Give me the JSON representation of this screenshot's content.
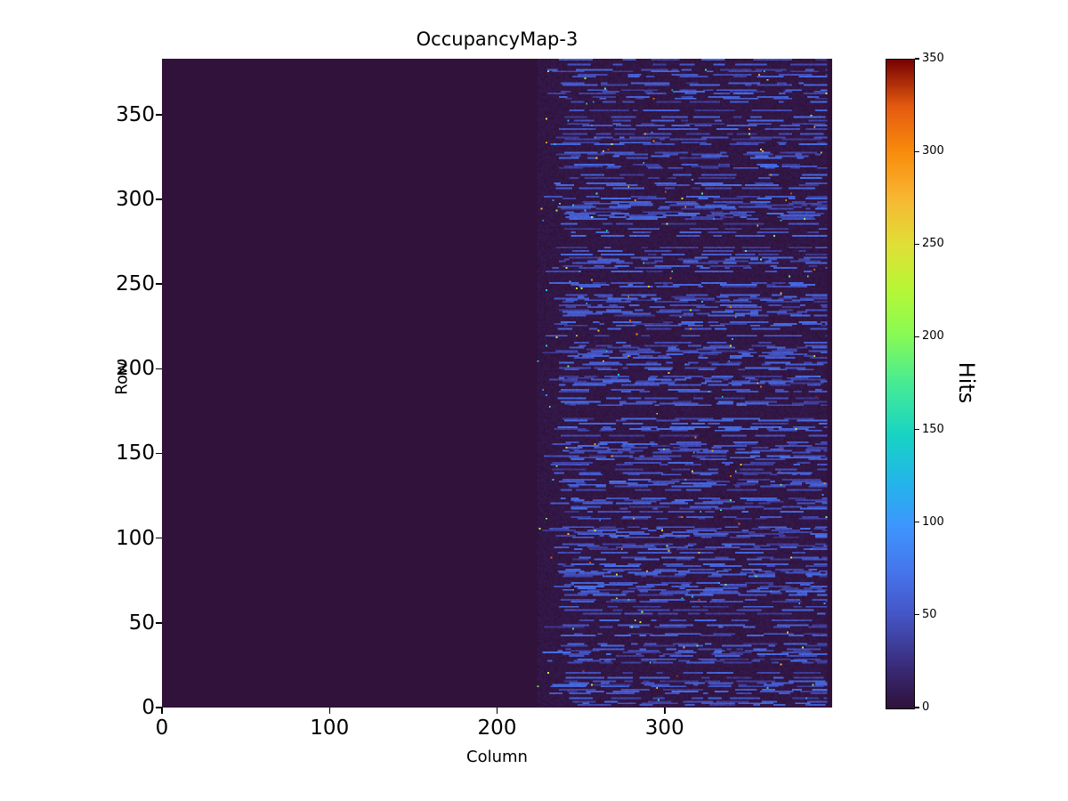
{
  "chart_data": {
    "type": "heatmap",
    "title": "OccupancyMap-3",
    "xlabel": "Column",
    "ylabel": "Row",
    "value_label": "Hits",
    "xlim": [
      0,
      400
    ],
    "ylim": [
      0,
      383
    ],
    "x_ticks": [
      0,
      100,
      200,
      300
    ],
    "y_ticks": [
      0,
      50,
      100,
      150,
      200,
      250,
      300,
      350
    ],
    "colorbar_ticks": [
      0,
      50,
      100,
      150,
      200,
      250,
      300,
      350
    ],
    "value_range": [
      0,
      350
    ],
    "grid": false,
    "legend": "none",
    "colormap": "turbo",
    "colormap_stops": [
      [
        0.0,
        "#30123b"
      ],
      [
        0.07,
        "#3b2f80"
      ],
      [
        0.14,
        "#4454c4"
      ],
      [
        0.21,
        "#4675ed"
      ],
      [
        0.28,
        "#3e96fe"
      ],
      [
        0.35,
        "#23b6ea"
      ],
      [
        0.42,
        "#18d3c4"
      ],
      [
        0.5,
        "#46eb95"
      ],
      [
        0.58,
        "#8bfb52"
      ],
      [
        0.65,
        "#b9f635"
      ],
      [
        0.72,
        "#e2dd37"
      ],
      [
        0.79,
        "#f8b632"
      ],
      [
        0.86,
        "#f98b0b"
      ],
      [
        0.93,
        "#e45a10"
      ],
      [
        1.0,
        "#7a0403"
      ]
    ],
    "background_value": 0,
    "regions": [
      {
        "name": "empty-left",
        "col_range": [
          0,
          224
        ],
        "value": 0
      },
      {
        "name": "active-right",
        "col_range": [
          224,
          397
        ],
        "description": "dense horizontal dash streaks of roughly 30-70 hits with sparse isolated hot pixels up to 350"
      }
    ],
    "pattern": {
      "seed": 42,
      "streak_row_probability": 0.55,
      "streak_value_min": 28,
      "streak_value_max": 68,
      "hot_pixel_probability": 0.003,
      "hot_value_min": 80,
      "hot_value_max": 350,
      "speckle_value_max": 14
    }
  }
}
